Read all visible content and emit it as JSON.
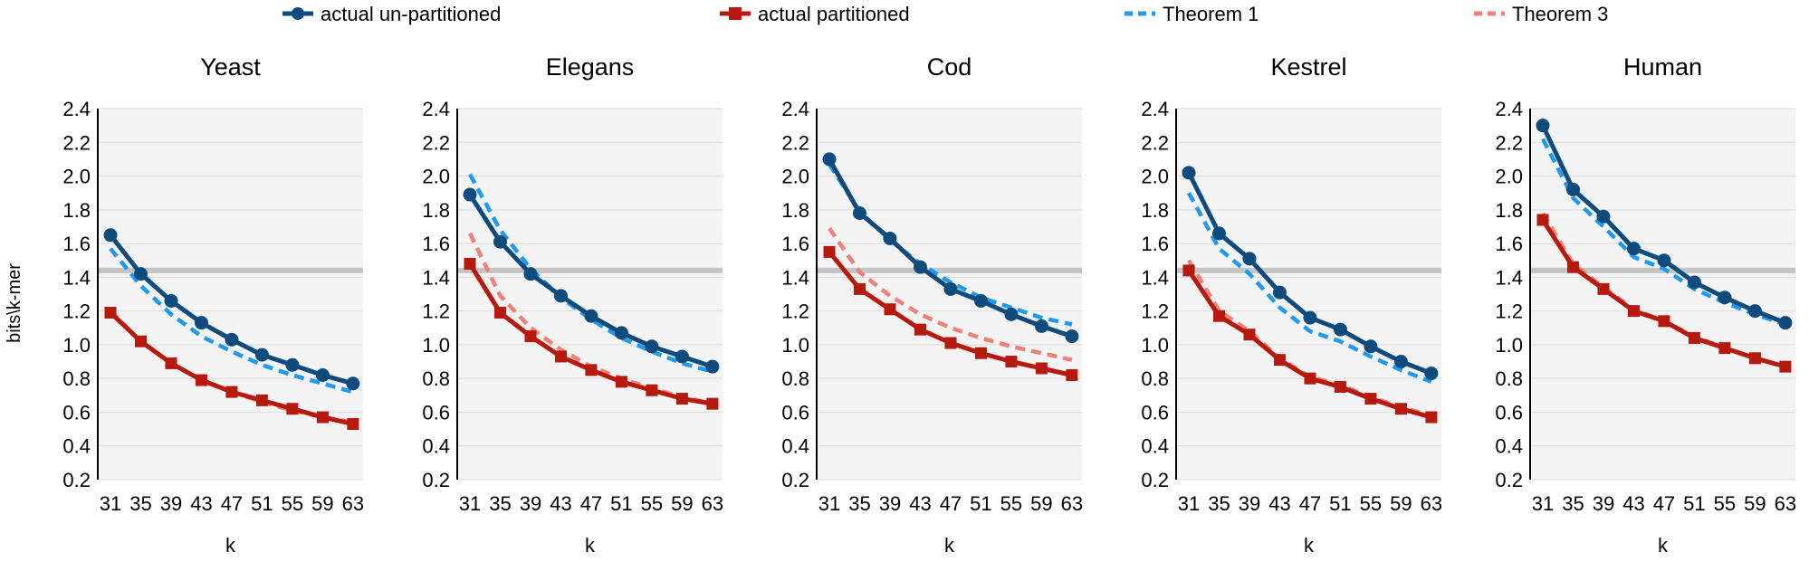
{
  "legend": [
    {
      "label": "actual un-partitioned",
      "color": "#0f4c7d",
      "style": "solid-circle"
    },
    {
      "label": "actual partitioned",
      "color": "#b61a0e",
      "style": "solid-square"
    },
    {
      "label": "Theorem 1",
      "color": "#1e9af2",
      "style": "dashed"
    },
    {
      "label": "Theorem 3",
      "color": "#f08078",
      "style": "dashed"
    }
  ],
  "ylabel": "bits\\k-mer",
  "xlabel": "k",
  "colors": {
    "unpart": "#0f4c7d",
    "part": "#b61a0e",
    "thm1": "#1e9af2",
    "thm3": "#f08078",
    "reference": "#c4c4c4",
    "plot_bg": "#f4f4f4",
    "grid": "#dcdcdc"
  },
  "chart_data": [
    {
      "type": "line",
      "title": "Yeast",
      "xlabel": "k",
      "ylabel": "bits\\k-mer",
      "categories": [
        "31",
        "35",
        "39",
        "43",
        "47",
        "51",
        "55",
        "59",
        "63"
      ],
      "ylim": [
        0.2,
        2.4
      ],
      "yticks": [
        "0.2",
        "0.4",
        "0.6",
        "0.8",
        "1.0",
        "1.2",
        "1.4",
        "1.6",
        "1.8",
        "2.0",
        "2.2",
        "2.4"
      ],
      "reference_line": 1.44,
      "series": [
        {
          "name": "actual un-partitioned",
          "values": [
            1.65,
            1.42,
            1.26,
            1.13,
            1.03,
            0.94,
            0.88,
            0.82,
            0.77
          ]
        },
        {
          "name": "actual partitioned",
          "values": [
            1.19,
            1.02,
            0.89,
            0.79,
            0.72,
            0.67,
            0.62,
            0.57,
            0.53
          ]
        },
        {
          "name": "Theorem 1",
          "values": [
            1.57,
            1.35,
            1.18,
            1.05,
            0.96,
            0.88,
            0.82,
            0.77,
            0.72
          ]
        },
        {
          "name": "Theorem 3",
          "values": [
            1.2,
            1.02,
            0.89,
            0.79,
            0.72,
            0.66,
            0.61,
            0.57,
            0.54
          ]
        }
      ]
    },
    {
      "type": "line",
      "title": "Elegans",
      "xlabel": "k",
      "ylabel": "bits\\k-mer",
      "categories": [
        "31",
        "35",
        "39",
        "43",
        "47",
        "51",
        "55",
        "59",
        "63"
      ],
      "ylim": [
        0.2,
        2.4
      ],
      "yticks": [
        "0.2",
        "0.4",
        "0.6",
        "0.8",
        "1.0",
        "1.2",
        "1.4",
        "1.6",
        "1.8",
        "2.0",
        "2.2",
        "2.4"
      ],
      "reference_line": 1.44,
      "series": [
        {
          "name": "actual un-partitioned",
          "values": [
            1.89,
            1.61,
            1.42,
            1.29,
            1.17,
            1.07,
            0.99,
            0.93,
            0.87
          ]
        },
        {
          "name": "actual partitioned",
          "values": [
            1.48,
            1.19,
            1.05,
            0.93,
            0.85,
            0.78,
            0.73,
            0.68,
            0.65
          ]
        },
        {
          "name": "Theorem 1",
          "values": [
            2.01,
            1.68,
            1.45,
            1.28,
            1.15,
            1.04,
            0.96,
            0.89,
            0.84
          ]
        },
        {
          "name": "Theorem 3",
          "values": [
            1.66,
            1.29,
            1.1,
            0.97,
            0.87,
            0.8,
            0.74,
            0.69,
            0.65
          ]
        }
      ]
    },
    {
      "type": "line",
      "title": "Cod",
      "xlabel": "k",
      "ylabel": "bits\\k-mer",
      "categories": [
        "31",
        "35",
        "39",
        "43",
        "47",
        "51",
        "55",
        "59",
        "63"
      ],
      "ylim": [
        0.2,
        2.4
      ],
      "yticks": [
        "0.2",
        "0.4",
        "0.6",
        "0.8",
        "1.0",
        "1.2",
        "1.4",
        "1.6",
        "1.8",
        "2.0",
        "2.2",
        "2.4"
      ],
      "reference_line": 1.44,
      "series": [
        {
          "name": "actual un-partitioned",
          "values": [
            2.1,
            1.78,
            1.63,
            1.46,
            1.33,
            1.26,
            1.18,
            1.11,
            1.05
          ]
        },
        {
          "name": "actual partitioned",
          "values": [
            1.55,
            1.33,
            1.21,
            1.09,
            1.01,
            0.95,
            0.9,
            0.86,
            0.82
          ]
        },
        {
          "name": "Theorem 1",
          "values": [
            2.07,
            1.79,
            1.62,
            1.48,
            1.37,
            1.28,
            1.22,
            1.16,
            1.12
          ]
        },
        {
          "name": "Theorem 3",
          "values": [
            1.69,
            1.43,
            1.29,
            1.18,
            1.1,
            1.04,
            0.99,
            0.95,
            0.91
          ]
        }
      ]
    },
    {
      "type": "line",
      "title": "Kestrel",
      "xlabel": "k",
      "ylabel": "bits\\k-mer",
      "categories": [
        "31",
        "35",
        "39",
        "43",
        "47",
        "51",
        "55",
        "59",
        "63"
      ],
      "ylim": [
        0.2,
        2.4
      ],
      "yticks": [
        "0.2",
        "0.4",
        "0.6",
        "0.8",
        "1.0",
        "1.2",
        "1.4",
        "1.6",
        "1.8",
        "2.0",
        "2.2",
        "2.4"
      ],
      "reference_line": 1.44,
      "series": [
        {
          "name": "actual un-partitioned",
          "values": [
            2.02,
            1.66,
            1.51,
            1.31,
            1.16,
            1.09,
            0.99,
            0.9,
            0.83
          ]
        },
        {
          "name": "actual partitioned",
          "values": [
            1.44,
            1.17,
            1.06,
            0.91,
            0.8,
            0.75,
            0.68,
            0.62,
            0.57
          ]
        },
        {
          "name": "Theorem 1",
          "values": [
            1.9,
            1.57,
            1.42,
            1.22,
            1.08,
            1.02,
            0.93,
            0.85,
            0.78
          ]
        },
        {
          "name": "Theorem 3",
          "values": [
            1.5,
            1.2,
            1.08,
            0.92,
            0.81,
            0.76,
            0.69,
            0.63,
            0.58
          ]
        }
      ]
    },
    {
      "type": "line",
      "title": "Human",
      "xlabel": "k",
      "ylabel": "bits\\k-mer",
      "categories": [
        "31",
        "35",
        "39",
        "43",
        "47",
        "51",
        "55",
        "59",
        "63"
      ],
      "ylim": [
        0.2,
        2.4
      ],
      "yticks": [
        "0.2",
        "0.4",
        "0.6",
        "0.8",
        "1.0",
        "1.2",
        "1.4",
        "1.6",
        "1.8",
        "2.0",
        "2.2",
        "2.4"
      ],
      "reference_line": 1.44,
      "series": [
        {
          "name": "actual un-partitioned",
          "values": [
            2.3,
            1.92,
            1.76,
            1.57,
            1.5,
            1.37,
            1.28,
            1.2,
            1.13
          ]
        },
        {
          "name": "actual partitioned",
          "values": [
            1.74,
            1.46,
            1.33,
            1.2,
            1.14,
            1.04,
            0.98,
            0.92,
            0.87
          ]
        },
        {
          "name": "Theorem 1",
          "values": [
            2.22,
            1.87,
            1.7,
            1.52,
            1.45,
            1.33,
            1.25,
            1.18,
            1.12
          ]
        },
        {
          "name": "Theorem 3",
          "values": [
            1.78,
            1.48,
            1.34,
            1.21,
            1.14,
            1.05,
            0.98,
            0.92,
            0.87
          ]
        }
      ]
    }
  ]
}
